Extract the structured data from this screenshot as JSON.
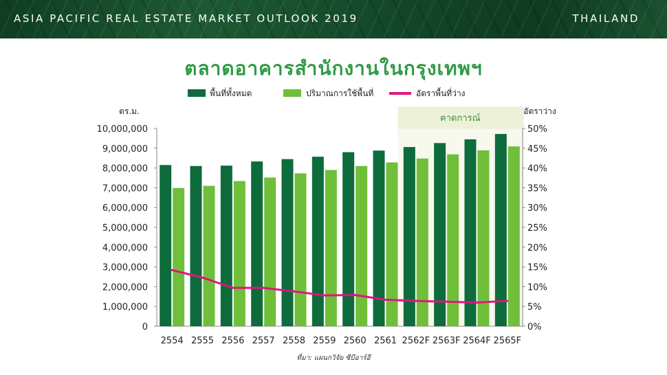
{
  "header": {
    "title": "ASIA PACIFIC REAL ESTATE MARKET OUTLOOK 2019",
    "country": "THAILAND"
  },
  "source": "ที่มา: แผนกวิจัย ซีบีอาร์อี",
  "colors": {
    "total_supply": "#0e6b3c",
    "occupied": "#6fbf3a",
    "vacancy": "#e0157d",
    "forecast_band": "#eef1d9",
    "forecast_text": "#3c8f3a",
    "title": "#2f9b46"
  },
  "chart_data": {
    "type": "bar",
    "title": "ตลาดอาคารสำนักงานในกรุงเทพฯ",
    "ylabel": "ตร.ม.",
    "y2label": "อัตราว่าง",
    "categories": [
      "2554",
      "2555",
      "2556",
      "2557",
      "2558",
      "2559",
      "2560",
      "2561",
      "2562F",
      "2563F",
      "2564F",
      "2565F"
    ],
    "ylim": [
      0,
      10000000
    ],
    "y_ticks": [
      "0",
      "1,000,000",
      "2,000,000",
      "3,000,000",
      "4,000,000",
      "5,000,000",
      "6,000,000",
      "7,000,000",
      "8,000,000",
      "9,000,000",
      "10,000,000"
    ],
    "y2lim": [
      0,
      50
    ],
    "y2_ticks": [
      "0%",
      "5%",
      "10%",
      "15%",
      "20%",
      "25%",
      "30%",
      "35%",
      "40%",
      "45%",
      "50%"
    ],
    "forecast_label": "คาดการณ์",
    "forecast_categories": [
      "2562F",
      "2563F",
      "2564F",
      "2565F"
    ],
    "grid": false,
    "legend_position": "top",
    "series": [
      {
        "name": "พื้นที่ทั้งหมด",
        "type": "bar",
        "axis": "left",
        "values": [
          8150000,
          8100000,
          8120000,
          8330000,
          8450000,
          8570000,
          8800000,
          8880000,
          9060000,
          9260000,
          9450000,
          9720000
        ]
      },
      {
        "name": "ปริมาณการใช้พื้นที่",
        "type": "bar",
        "axis": "left",
        "values": [
          6990000,
          7100000,
          7340000,
          7520000,
          7730000,
          7900000,
          8100000,
          8280000,
          8480000,
          8690000,
          8890000,
          9090000
        ]
      },
      {
        "name": "อัตราพื้นที่ว่าง",
        "type": "line",
        "axis": "right",
        "values": [
          14.2,
          12.3,
          9.7,
          9.7,
          8.8,
          7.8,
          7.9,
          6.7,
          6.4,
          6.2,
          6.0,
          6.4
        ]
      }
    ]
  }
}
